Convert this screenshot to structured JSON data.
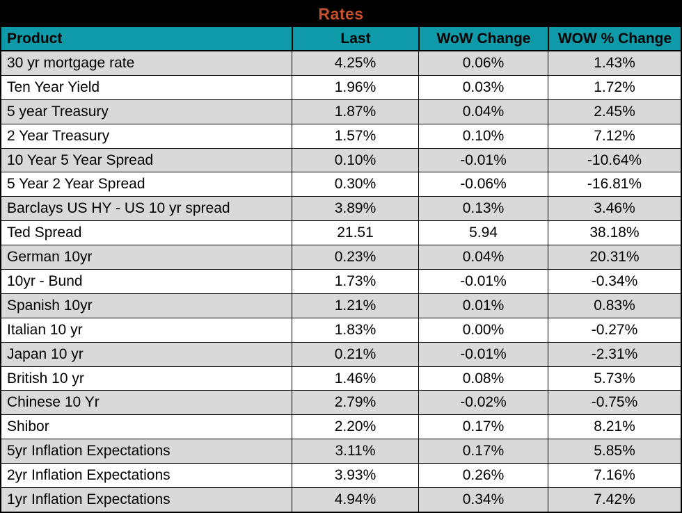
{
  "title": "Rates",
  "colors": {
    "title_bg": "#000000",
    "title_text": "#c8502a",
    "header_bg": "#0e9aa9",
    "header_text": "#000000",
    "row_shaded_bg": "#d9d9d9",
    "row_plain_bg": "#ffffff",
    "border": "#000000"
  },
  "chart_data": {
    "type": "table",
    "title": "Rates",
    "columns": [
      "Product",
      "Last",
      "WoW Change",
      "WOW % Change"
    ],
    "rows": [
      [
        "30 yr mortgage rate",
        "4.25%",
        "0.06%",
        "1.43%"
      ],
      [
        "Ten Year Yield",
        "1.96%",
        "0.03%",
        "1.72%"
      ],
      [
        "5 year Treasury",
        "1.87%",
        "0.04%",
        "2.45%"
      ],
      [
        "2 Year Treasury",
        "1.57%",
        "0.10%",
        "7.12%"
      ],
      [
        "10 Year 5 Year Spread",
        "0.10%",
        "-0.01%",
        "-10.64%"
      ],
      [
        "5 Year 2 Year Spread",
        "0.30%",
        "-0.06%",
        "-16.81%"
      ],
      [
        "Barclays US HY - US 10 yr spread",
        "3.89%",
        "0.13%",
        "3.46%"
      ],
      [
        "Ted Spread",
        "21.51",
        "5.94",
        "38.18%"
      ],
      [
        "German 10yr",
        "0.23%",
        "0.04%",
        "20.31%"
      ],
      [
        "10yr - Bund",
        "1.73%",
        "-0.01%",
        "-0.34%"
      ],
      [
        "Spanish 10yr",
        "1.21%",
        "0.01%",
        "0.83%"
      ],
      [
        "Italian 10 yr",
        "1.83%",
        "0.00%",
        "-0.27%"
      ],
      [
        "Japan 10 yr",
        "0.21%",
        "-0.01%",
        "-2.31%"
      ],
      [
        "British 10 yr",
        "1.46%",
        "0.08%",
        "5.73%"
      ],
      [
        "Chinese 10 Yr",
        "2.79%",
        "-0.02%",
        "-0.75%"
      ],
      [
        "Shibor",
        "2.20%",
        "0.17%",
        "8.21%"
      ],
      [
        "5yr Inflation Expectations",
        "3.11%",
        "0.17%",
        "5.85%"
      ],
      [
        "2yr Inflation Expectations",
        "3.93%",
        "0.26%",
        "7.16%"
      ],
      [
        "1yr Inflation Expectations",
        "4.94%",
        "0.34%",
        "7.42%"
      ]
    ]
  }
}
